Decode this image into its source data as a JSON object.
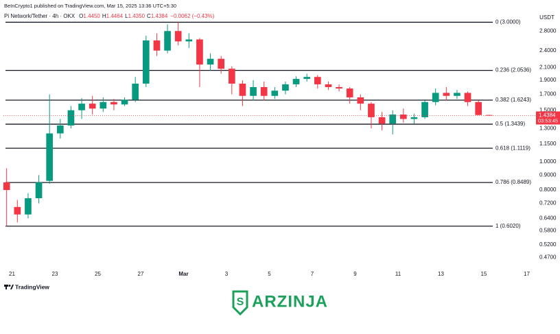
{
  "chart_data": {
    "type": "candlestick",
    "publisher": "BeInCrypto1 published on TradingView.com, Mar 15, 2025 13:36 UTC+5:30",
    "symbol": "Pi Network/Tether · 4h · OKX",
    "ohlc_legend": [
      {
        "key": "O",
        "value": "1.4450"
      },
      {
        "key": "H",
        "value": "1.4464"
      },
      {
        "key": "L",
        "value": "1.4350"
      },
      {
        "key": "C",
        "value": "1.4384"
      }
    ],
    "change": "−0.0062 (−0.43%)",
    "currency": "USDT",
    "x": [
      20.75,
      21.25,
      21.75,
      22.25,
      22.75,
      23.25,
      23.75,
      24.25,
      24.75,
      25.25,
      25.75,
      26.25,
      26.75,
      27.25,
      27.75,
      28.25,
      28.75,
      29.25,
      29.75,
      30.25,
      30.75,
      31.25,
      31.75,
      32.25,
      32.75,
      33.25,
      33.75,
      34.25,
      34.75,
      35.25,
      35.75,
      36.25,
      36.75,
      37.25,
      37.75,
      38.25,
      38.75,
      39.25,
      39.75,
      40.25,
      40.75,
      41.25,
      41.75,
      42.25,
      42.75,
      43.25
    ],
    "open": [
      0.85,
      0.7,
      0.66,
      0.75,
      0.86,
      1.25,
      1.33,
      1.5,
      1.58,
      1.52,
      1.6,
      1.57,
      1.63,
      1.85,
      2.6,
      2.4,
      2.8,
      2.58,
      2.62,
      2.15,
      2.25,
      2.08,
      1.85,
      1.68,
      1.8,
      1.68,
      1.75,
      1.84,
      1.92,
      1.95,
      1.84,
      1.8,
      1.78,
      1.66,
      1.58,
      1.42,
      1.35,
      1.45,
      1.4,
      1.42,
      1.6,
      1.72,
      1.68,
      1.72,
      1.6,
      1.445
    ],
    "high": [
      0.95,
      0.74,
      0.78,
      0.9,
      1.7,
      1.4,
      1.55,
      1.65,
      1.68,
      1.66,
      1.64,
      1.66,
      1.95,
      2.7,
      2.75,
      2.95,
      3.0,
      2.75,
      2.65,
      2.35,
      2.3,
      2.12,
      1.9,
      1.9,
      1.88,
      1.8,
      1.88,
      1.96,
      2.0,
      1.98,
      1.88,
      1.84,
      1.8,
      1.7,
      1.6,
      1.48,
      1.5,
      1.52,
      1.46,
      1.62,
      1.78,
      1.8,
      1.76,
      1.74,
      1.62,
      1.4464
    ],
    "low": [
      0.6,
      0.62,
      0.64,
      0.72,
      0.84,
      1.2,
      1.3,
      1.4,
      1.45,
      1.48,
      1.5,
      1.55,
      1.6,
      1.8,
      2.3,
      2.35,
      2.5,
      2.45,
      1.8,
      2.05,
      2.0,
      1.7,
      1.55,
      1.62,
      1.62,
      1.64,
      1.7,
      1.8,
      1.88,
      1.78,
      1.76,
      1.74,
      1.58,
      1.5,
      1.3,
      1.28,
      1.24,
      1.36,
      1.35,
      1.4,
      1.56,
      1.62,
      1.64,
      1.55,
      1.44,
      1.435
    ],
    "close": [
      0.8,
      0.66,
      0.75,
      0.85,
      1.25,
      1.33,
      1.5,
      1.58,
      1.52,
      1.6,
      1.57,
      1.63,
      1.85,
      2.6,
      2.4,
      2.8,
      2.58,
      2.62,
      2.15,
      2.25,
      2.08,
      1.85,
      1.68,
      1.8,
      1.68,
      1.75,
      1.84,
      1.92,
      1.95,
      1.84,
      1.8,
      1.78,
      1.66,
      1.58,
      1.42,
      1.35,
      1.45,
      1.4,
      1.42,
      1.6,
      1.72,
      1.68,
      1.72,
      1.6,
      1.4446,
      1.4384
    ],
    "up_color": "#089981",
    "down_color": "#f23645",
    "xlim": [
      20.6,
      45.4
    ],
    "xticks": [
      21,
      23,
      25,
      27,
      {
        "value": 29,
        "label": "Mar"
      },
      {
        "value": 31,
        "label": "3"
      },
      {
        "value": 33,
        "label": "5"
      },
      {
        "value": 35,
        "label": "7"
      },
      {
        "value": 37,
        "label": "9"
      },
      {
        "value": 39,
        "label": "11"
      },
      {
        "value": 41,
        "label": "13"
      },
      {
        "value": 43,
        "label": "15"
      },
      {
        "value": 45,
        "label": "17"
      }
    ],
    "ylim": [
      0.43,
      3.04
    ],
    "log_scale": true,
    "yticks": [
      {
        "value": 2.8,
        "label": "2.8000"
      },
      {
        "value": 2.4,
        "label": "2.4000"
      },
      {
        "value": 2.1,
        "label": "2.1000"
      },
      {
        "value": 1.9,
        "label": "1.9000"
      },
      {
        "value": 1.7,
        "label": "1.7000"
      },
      {
        "value": 1.5,
        "label": "1.5000"
      },
      {
        "value": 1.3,
        "label": "1.3000"
      },
      {
        "value": 1.15,
        "label": "1.1500"
      },
      {
        "value": 1,
        "label": "1.0000"
      },
      {
        "value": 0.9,
        "label": "0.9000"
      },
      {
        "value": 0.8,
        "label": "0.8000"
      },
      {
        "value": 0.72,
        "label": "0.7200"
      },
      {
        "value": 0.64,
        "label": "0.6400"
      },
      {
        "value": 0.58,
        "label": "0.5800"
      },
      {
        "value": 0.52,
        "label": "0.5200"
      },
      {
        "value": 0.47,
        "label": "0.4700"
      }
    ],
    "fib_levels": [
      {
        "value": 3.0,
        "label": "0 (3.0000)"
      },
      {
        "value": 2.0536,
        "label": "0.236 (2.0536)"
      },
      {
        "value": 1.6243,
        "label": "0.382 (1.6243)"
      },
      {
        "value": 1.3439,
        "label": "0.5 (1.3439)"
      },
      {
        "value": 1.1119,
        "label": "0.618 (1.1119)"
      },
      {
        "value": 0.8489,
        "label": "0.786 (0.8489)"
      },
      {
        "value": 0.602,
        "label": "1 (0.6020)"
      }
    ],
    "last_price": 1.4384,
    "countdown": "03:53:45",
    "platform": "TradingView",
    "watermark": "ARZINJA"
  }
}
